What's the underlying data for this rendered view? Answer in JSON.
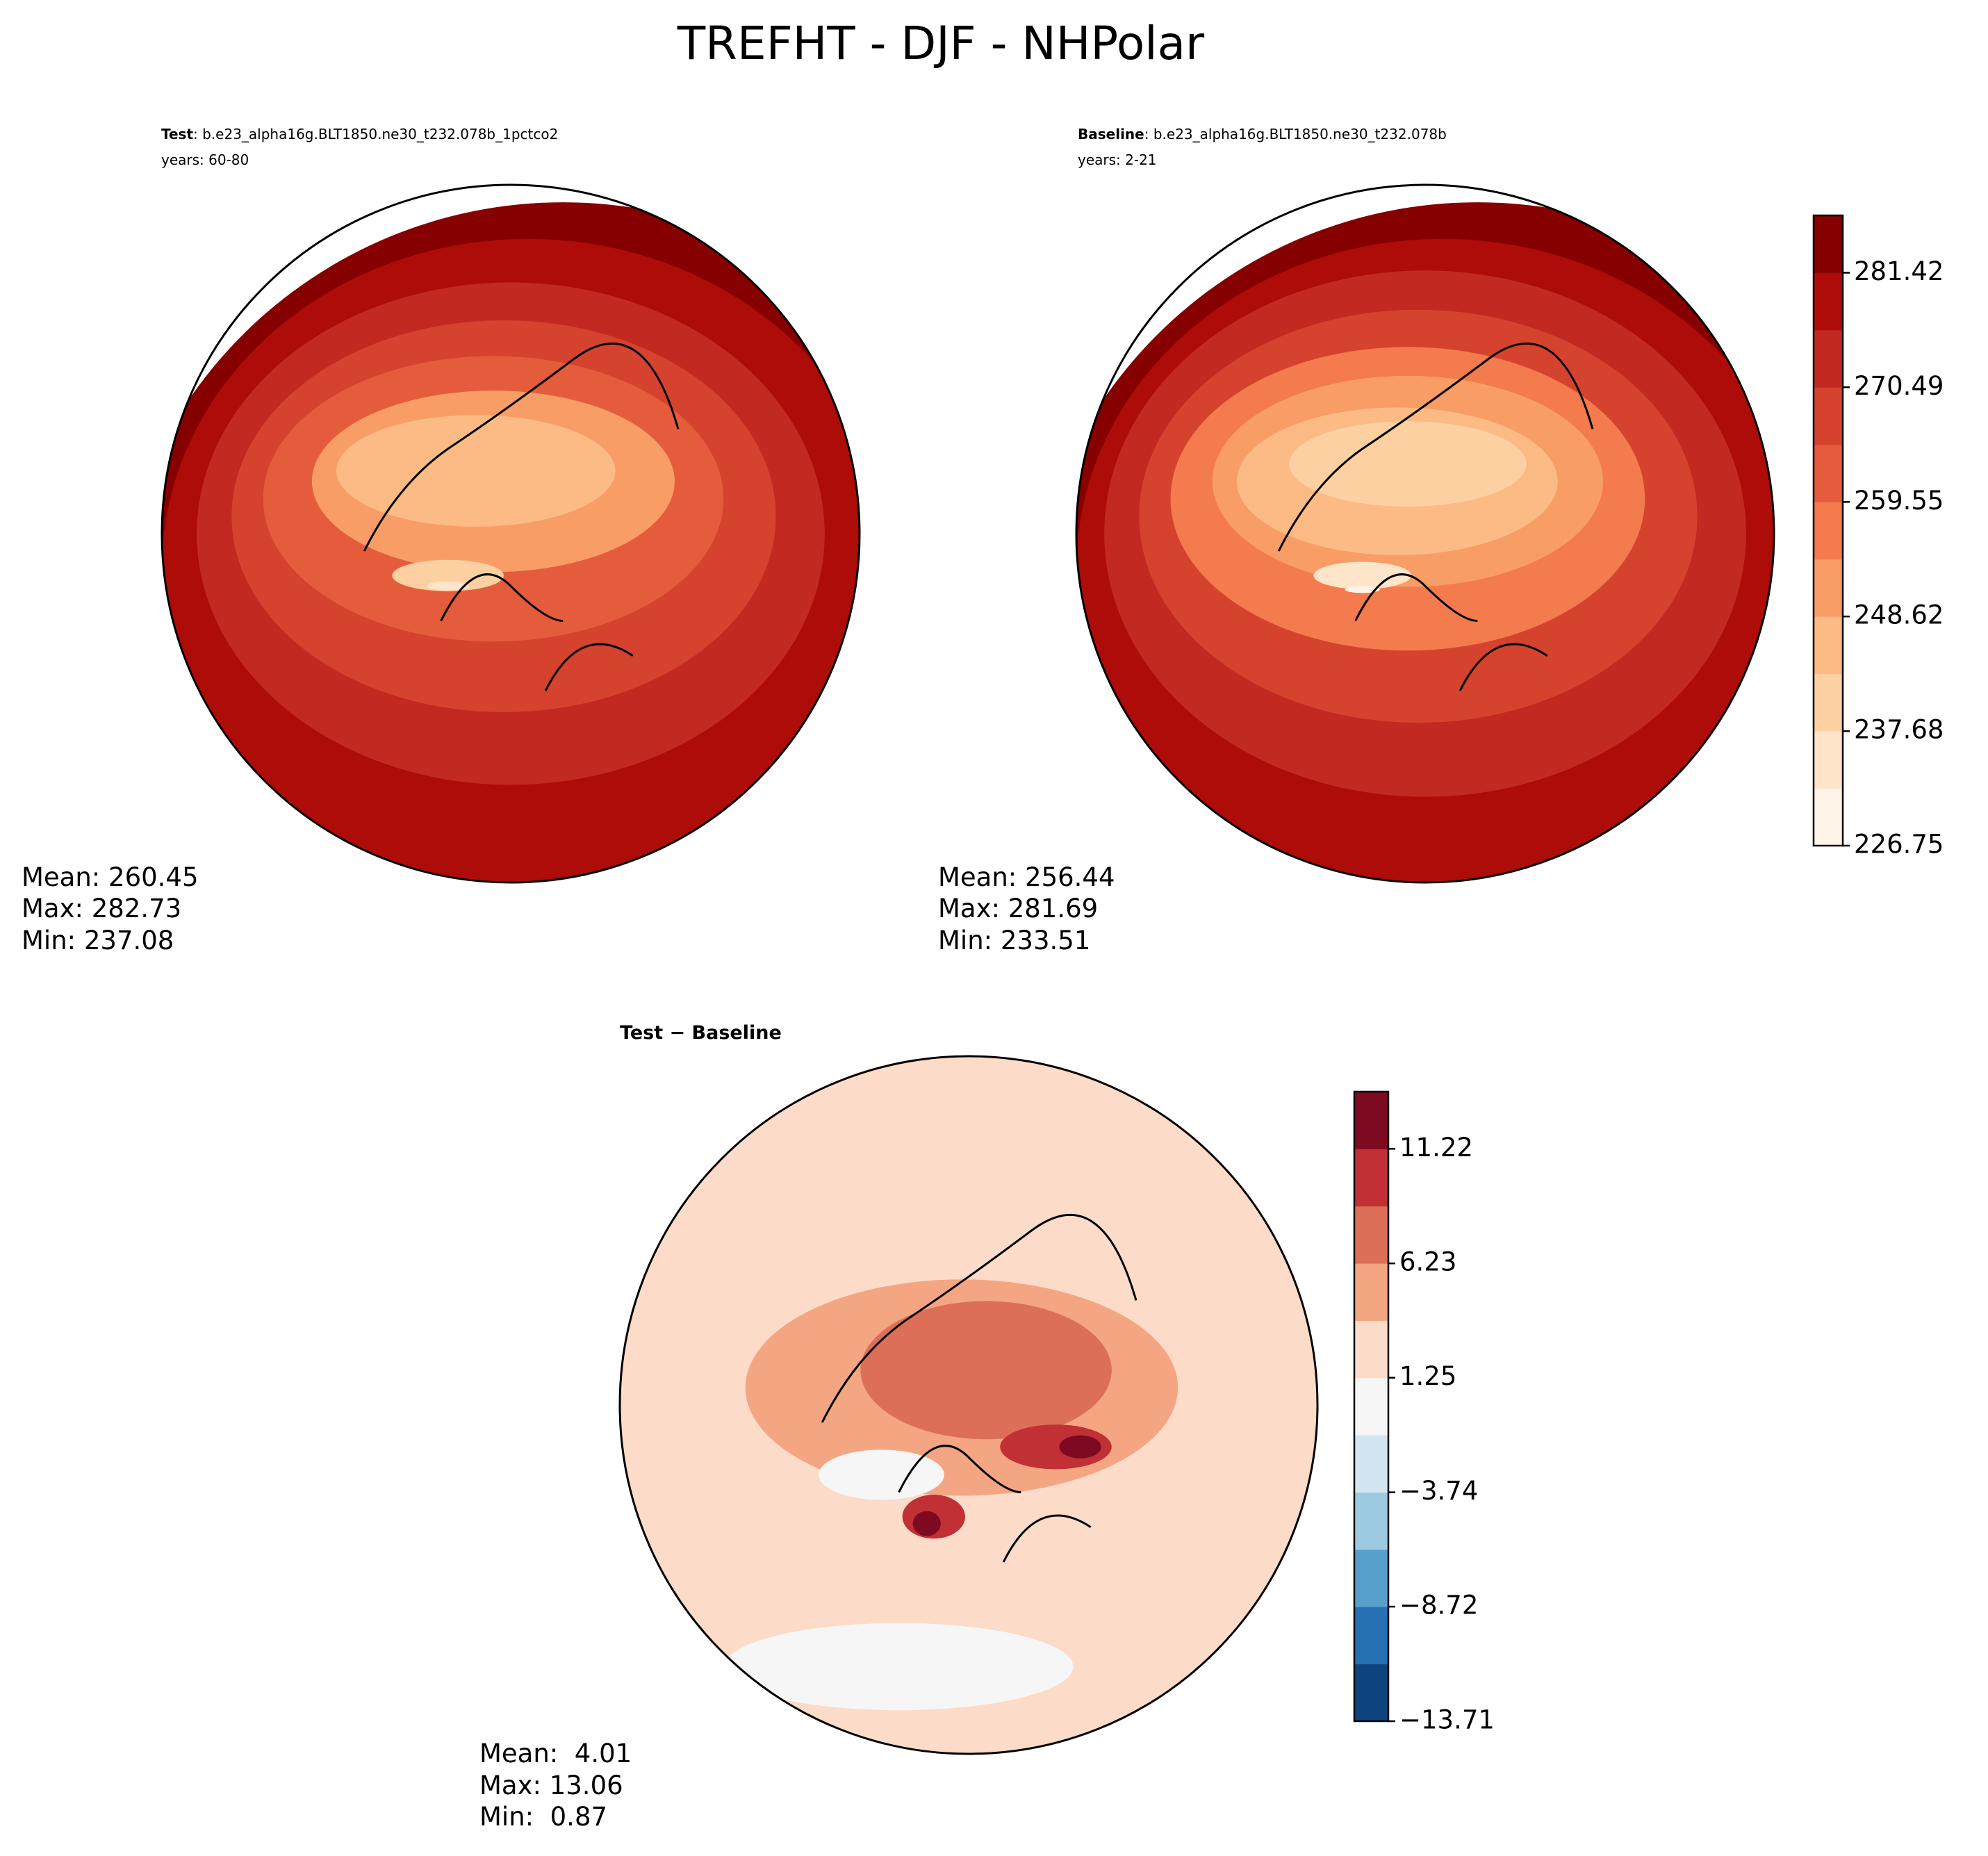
{
  "title": "TREFHT - DJF - NHPolar",
  "panels": [
    {
      "label": "Test",
      "case": ": b.e23_alpha16g.BLT1850.ne30_t232.078b_1pctco2",
      "years": "years: 60-80",
      "stats": [
        "Mean: 260.45",
        "Max: 282.73",
        "Min: 237.08"
      ]
    },
    {
      "label": "Baseline",
      "case": ": b.e23_alpha16g.BLT1850.ne30_t232.078b",
      "years": "years: 2-21",
      "stats": [
        "Mean: 256.44",
        "Max: 281.69",
        "Min: 233.51"
      ]
    },
    {
      "label": "Test − Baseline",
      "stats": [
        "Mean:  4.01",
        "Max: 13.06",
        "Min:  0.87"
      ]
    }
  ],
  "colorbars": [
    {
      "lim": [
        226.75,
        286.89
      ],
      "ticks": [
        226.75,
        237.68,
        248.62,
        259.55,
        270.49,
        281.42
      ],
      "colors": [
        "#fff4e8",
        "#fee4c9",
        "#fdd0a2",
        "#fcbb84",
        "#f99d67",
        "#f47b4d",
        "#e55c3c",
        "#d5432f",
        "#c22a21",
        "#ae0c08",
        "#870000"
      ]
    },
    {
      "lim": [
        -13.71,
        13.71
      ],
      "ticks": [
        {
          "value": -13.71,
          "label": "−13.71"
        },
        {
          "value": -8.72,
          "label": "−8.72"
        },
        {
          "value": -3.74,
          "label": "−3.74"
        },
        1.25,
        6.23,
        11.22
      ],
      "colors": [
        "#0f437d",
        "#2670b3",
        "#57a0cb",
        "#9ecae1",
        "#d2e5f0",
        "#f6f6f6",
        "#fcdbc8",
        "#f4a683",
        "#dd6f58",
        "#c03034",
        "#7e0a22"
      ]
    }
  ]
}
